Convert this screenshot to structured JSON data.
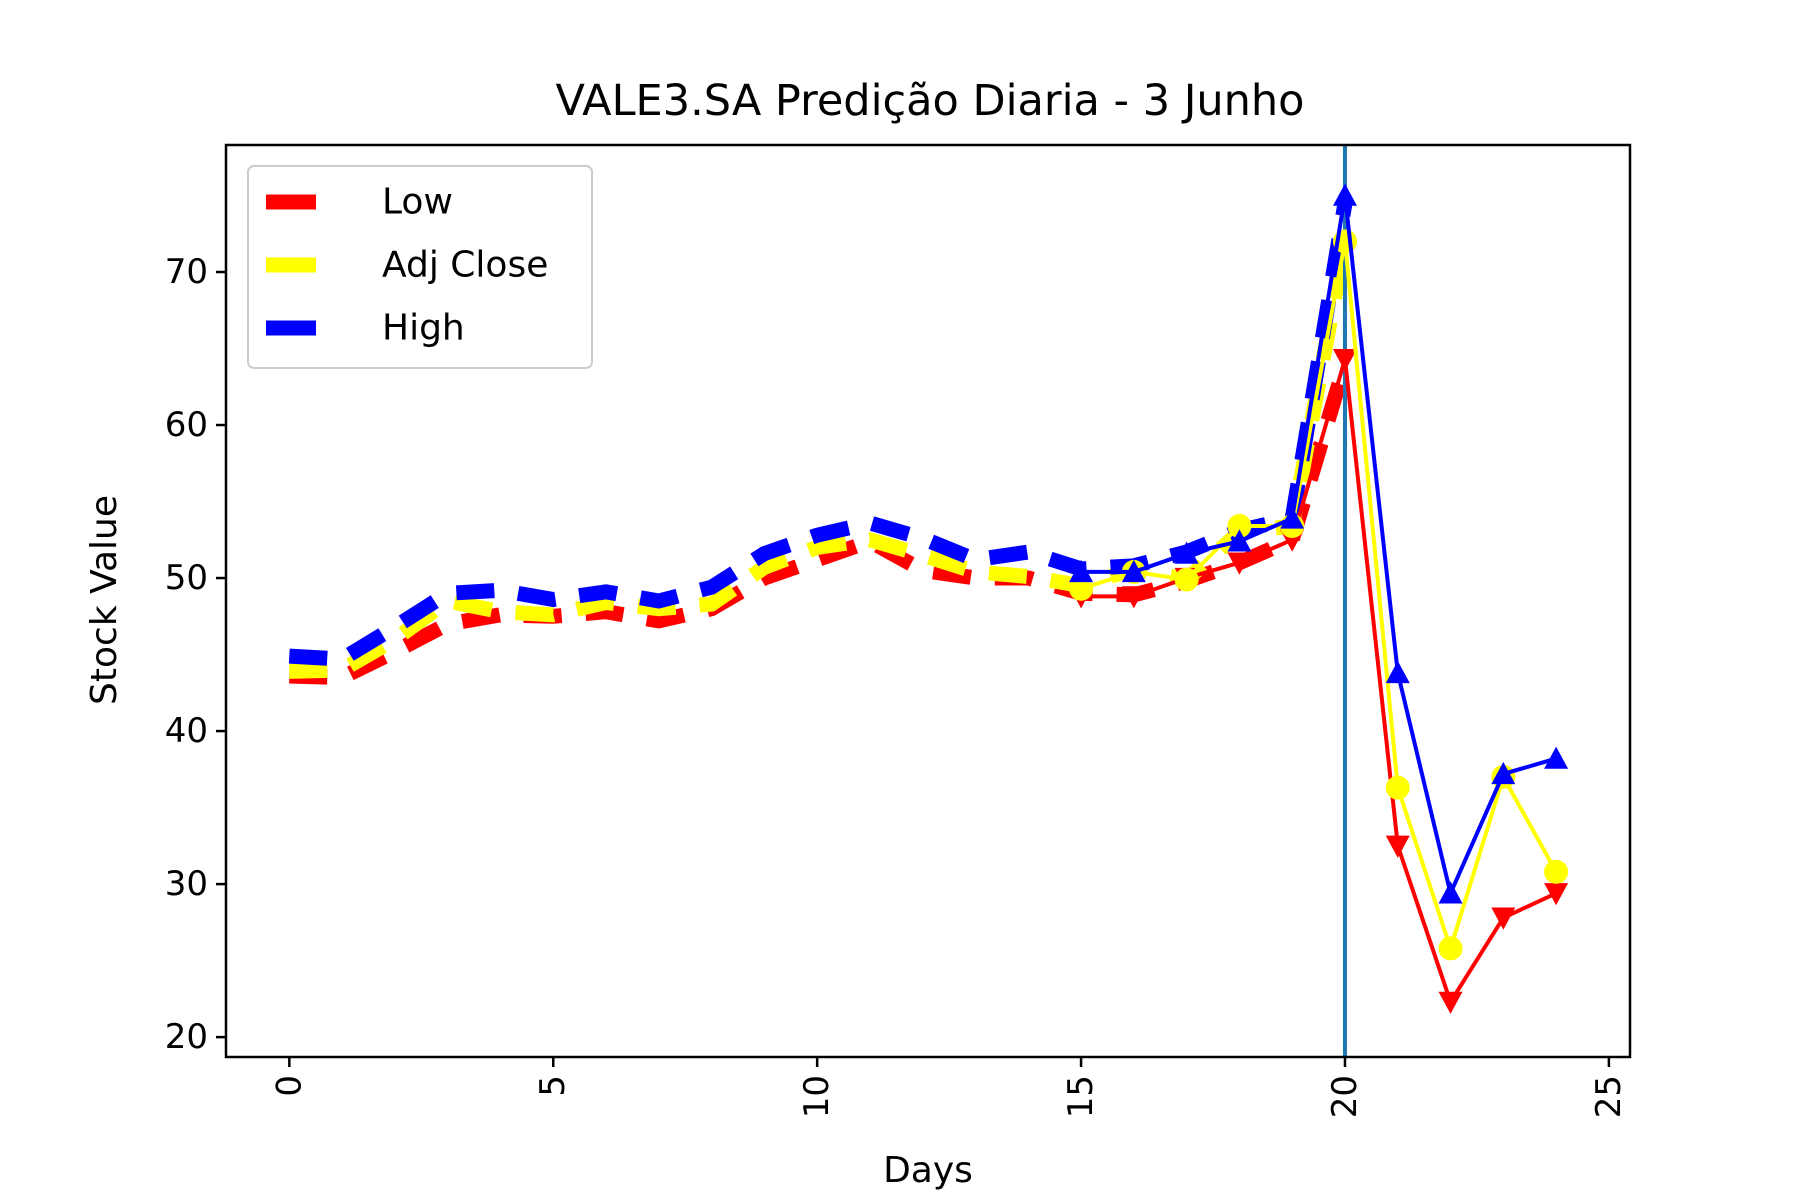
{
  "chart_data": {
    "type": "line",
    "title": "VALE3.SA Predição Diaria - 3 Junho",
    "xlabel": "Days",
    "ylabel": "Stock Value",
    "xlim": [
      -1.2,
      25.4
    ],
    "ylim": [
      18.7,
      78.3
    ],
    "xticks": [
      0,
      5,
      10,
      15,
      20,
      25
    ],
    "xtick_labels": [
      "0",
      "5",
      "10",
      "15",
      "20",
      "25"
    ],
    "yticks": [
      20,
      30,
      40,
      50,
      60,
      70
    ],
    "ytick_labels": [
      "20",
      "30",
      "40",
      "50",
      "60",
      "70"
    ],
    "grid": false,
    "legend_position": "upper-left",
    "vertical_line": {
      "x": 20,
      "color": "#1f77b4"
    },
    "legend": [
      {
        "label": "Low",
        "color": "#ff0000"
      },
      {
        "label": "Adj Close",
        "color": "#ffff00"
      },
      {
        "label": "High",
        "color": "#0000ff"
      }
    ],
    "series": [
      {
        "name": "Low",
        "color": "#ff0000",
        "history_x": [
          0,
          1,
          2,
          3,
          4,
          5,
          6,
          7,
          8,
          9,
          10,
          11,
          12,
          13,
          14,
          15,
          16,
          17,
          18,
          19,
          20
        ],
        "history_y": [
          43.6,
          43.5,
          45.2,
          47.0,
          47.6,
          47.5,
          47.8,
          47.2,
          48.0,
          50.0,
          51.2,
          52.4,
          50.5,
          50.0,
          50.0,
          49.0,
          48.9,
          49.8,
          51.0,
          52.5,
          64.0
        ],
        "pred_x": [
          15,
          16,
          17,
          18,
          19,
          20,
          21,
          22,
          23,
          24
        ],
        "pred_y": [
          48.8,
          48.8,
          50.0,
          51.0,
          52.5,
          64.3,
          32.5,
          22.3,
          27.8,
          29.4
        ],
        "marker": "triangle-down"
      },
      {
        "name": "Adj Close",
        "color": "#ffff00",
        "history_x": [
          0,
          1,
          2,
          3,
          4,
          5,
          6,
          7,
          8,
          9,
          10,
          11,
          12,
          13,
          14,
          15,
          16,
          17,
          18,
          19,
          20
        ],
        "history_y": [
          43.9,
          44.0,
          46.0,
          48.5,
          47.8,
          47.6,
          48.4,
          48.0,
          48.3,
          50.7,
          52.0,
          52.5,
          51.5,
          50.4,
          50.1,
          49.5,
          50.6,
          49.9,
          53.0,
          53.4,
          72.0
        ],
        "pred_x": [
          15,
          16,
          17,
          18,
          19,
          20,
          21,
          22,
          23,
          24
        ],
        "pred_y": [
          49.3,
          50.4,
          49.9,
          53.4,
          53.4,
          72.0,
          36.3,
          25.8,
          37.0,
          30.8
        ],
        "marker": "circle"
      },
      {
        "name": "High",
        "color": "#0000ff",
        "history_x": [
          0,
          1,
          2,
          3,
          4,
          5,
          6,
          7,
          8,
          9,
          10,
          11,
          12,
          13,
          14,
          15,
          16,
          17,
          18,
          19,
          20
        ],
        "history_y": [
          44.9,
          44.7,
          46.8,
          49.0,
          49.2,
          48.6,
          49.1,
          48.5,
          49.4,
          51.6,
          52.8,
          53.6,
          52.6,
          51.2,
          51.7,
          50.6,
          50.8,
          51.7,
          53.1,
          53.9,
          74.5
        ],
        "pred_x": [
          15,
          16,
          17,
          18,
          19,
          20,
          21,
          22,
          23,
          24
        ],
        "pred_y": [
          50.4,
          50.4,
          51.6,
          52.4,
          53.9,
          75.0,
          43.8,
          29.4,
          37.2,
          38.2
        ],
        "marker": "triangle-up"
      }
    ]
  }
}
